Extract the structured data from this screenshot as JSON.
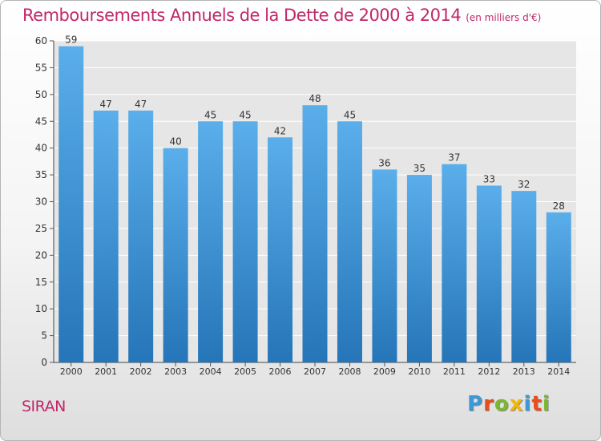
{
  "title": "Remboursements Annuels de la Dette de 2000 à 2014",
  "unit": "(en milliers d'€)",
  "location": "SIRAN",
  "logo": {
    "letters": [
      "P",
      "r",
      "o",
      "x",
      "i",
      "t",
      "i"
    ],
    "colors": [
      "#3a9ad9",
      "#e94e1b",
      "#7cb82f",
      "#f2b705",
      "#3a9ad9",
      "#e94e1b",
      "#7cb82f"
    ]
  },
  "chart_data": {
    "type": "bar",
    "categories": [
      "2000",
      "2001",
      "2002",
      "2003",
      "2004",
      "2005",
      "2006",
      "2007",
      "2008",
      "2009",
      "2010",
      "2011",
      "2012",
      "2013",
      "2014"
    ],
    "values": [
      59,
      47,
      47,
      40,
      45,
      45,
      42,
      48,
      45,
      36,
      35,
      37,
      33,
      32,
      28
    ],
    "title": "Remboursements Annuels de la Dette de 2000 à 2014",
    "ylim": [
      0,
      60
    ],
    "yticks": [
      0,
      5,
      10,
      15,
      20,
      25,
      30,
      35,
      40,
      45,
      50,
      55,
      60
    ],
    "grid": true,
    "bar_color_top": "#5aaeea",
    "bar_color_bottom": "#2575b8",
    "plot_background": "#e6e6e6"
  }
}
